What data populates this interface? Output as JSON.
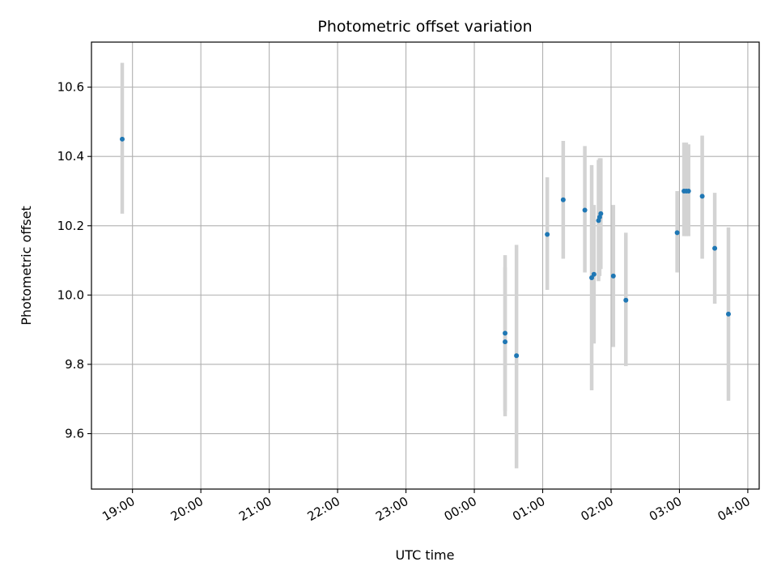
{
  "chart_data": {
    "type": "scatter",
    "title": "Photometric offset variation",
    "xlabel": "UTC time",
    "ylabel": "Photometric offset",
    "x_axis": {
      "kind": "time",
      "min": "18:24",
      "max": "04:10",
      "ticks": [
        "19:00",
        "20:00",
        "21:00",
        "22:00",
        "23:00",
        "00:00",
        "01:00",
        "02:00",
        "03:00",
        "04:00"
      ]
    },
    "y_axis": {
      "min": 9.44,
      "max": 10.73,
      "ticks": [
        9.6,
        9.8,
        10.0,
        10.2,
        10.4,
        10.6
      ],
      "tick_labels": [
        "9.6",
        "9.8",
        "10.0",
        "10.2",
        "10.4",
        "10.6"
      ]
    },
    "grid": true,
    "colors": {
      "point": "#1f77b4",
      "errorbar": "#d3d3d3"
    },
    "series": [
      {
        "points": [
          {
            "x": "18:51",
            "y": 10.45,
            "lo": 10.235,
            "hi": 10.67
          },
          {
            "x": "00:27",
            "y": 9.89,
            "lo": 9.665,
            "hi": 10.115
          },
          {
            "x": "00:27",
            "y": 9.865,
            "lo": 9.65,
            "hi": 10.08
          },
          {
            "x": "00:37",
            "y": 9.825,
            "lo": 9.5,
            "hi": 10.145
          },
          {
            "x": "01:04",
            "y": 10.175,
            "lo": 10.015,
            "hi": 10.34
          },
          {
            "x": "01:18",
            "y": 10.275,
            "lo": 10.105,
            "hi": 10.445
          },
          {
            "x": "01:37",
            "y": 10.245,
            "lo": 10.065,
            "hi": 10.43
          },
          {
            "x": "01:43",
            "y": 10.05,
            "lo": 9.725,
            "hi": 10.375
          },
          {
            "x": "01:45",
            "y": 10.06,
            "lo": 9.86,
            "hi": 10.26
          },
          {
            "x": "01:49",
            "y": 10.215,
            "lo": 10.04,
            "hi": 10.39
          },
          {
            "x": "01:50",
            "y": 10.225,
            "lo": 10.055,
            "hi": 10.395
          },
          {
            "x": "01:51",
            "y": 10.235,
            "lo": 10.075,
            "hi": 10.395
          },
          {
            "x": "02:02",
            "y": 10.055,
            "lo": 9.85,
            "hi": 10.26
          },
          {
            "x": "02:13",
            "y": 9.985,
            "lo": 9.795,
            "hi": 10.18
          },
          {
            "x": "02:58",
            "y": 10.18,
            "lo": 10.065,
            "hi": 10.3
          },
          {
            "x": "03:04",
            "y": 10.3,
            "lo": 10.17,
            "hi": 10.44
          },
          {
            "x": "03:06",
            "y": 10.3,
            "lo": 10.17,
            "hi": 10.44
          },
          {
            "x": "03:08",
            "y": 10.3,
            "lo": 10.17,
            "hi": 10.435
          },
          {
            "x": "03:20",
            "y": 10.285,
            "lo": 10.105,
            "hi": 10.46
          },
          {
            "x": "03:31",
            "y": 10.135,
            "lo": 9.975,
            "hi": 10.295
          },
          {
            "x": "03:43",
            "y": 9.945,
            "lo": 9.695,
            "hi": 10.195
          }
        ]
      }
    ]
  }
}
